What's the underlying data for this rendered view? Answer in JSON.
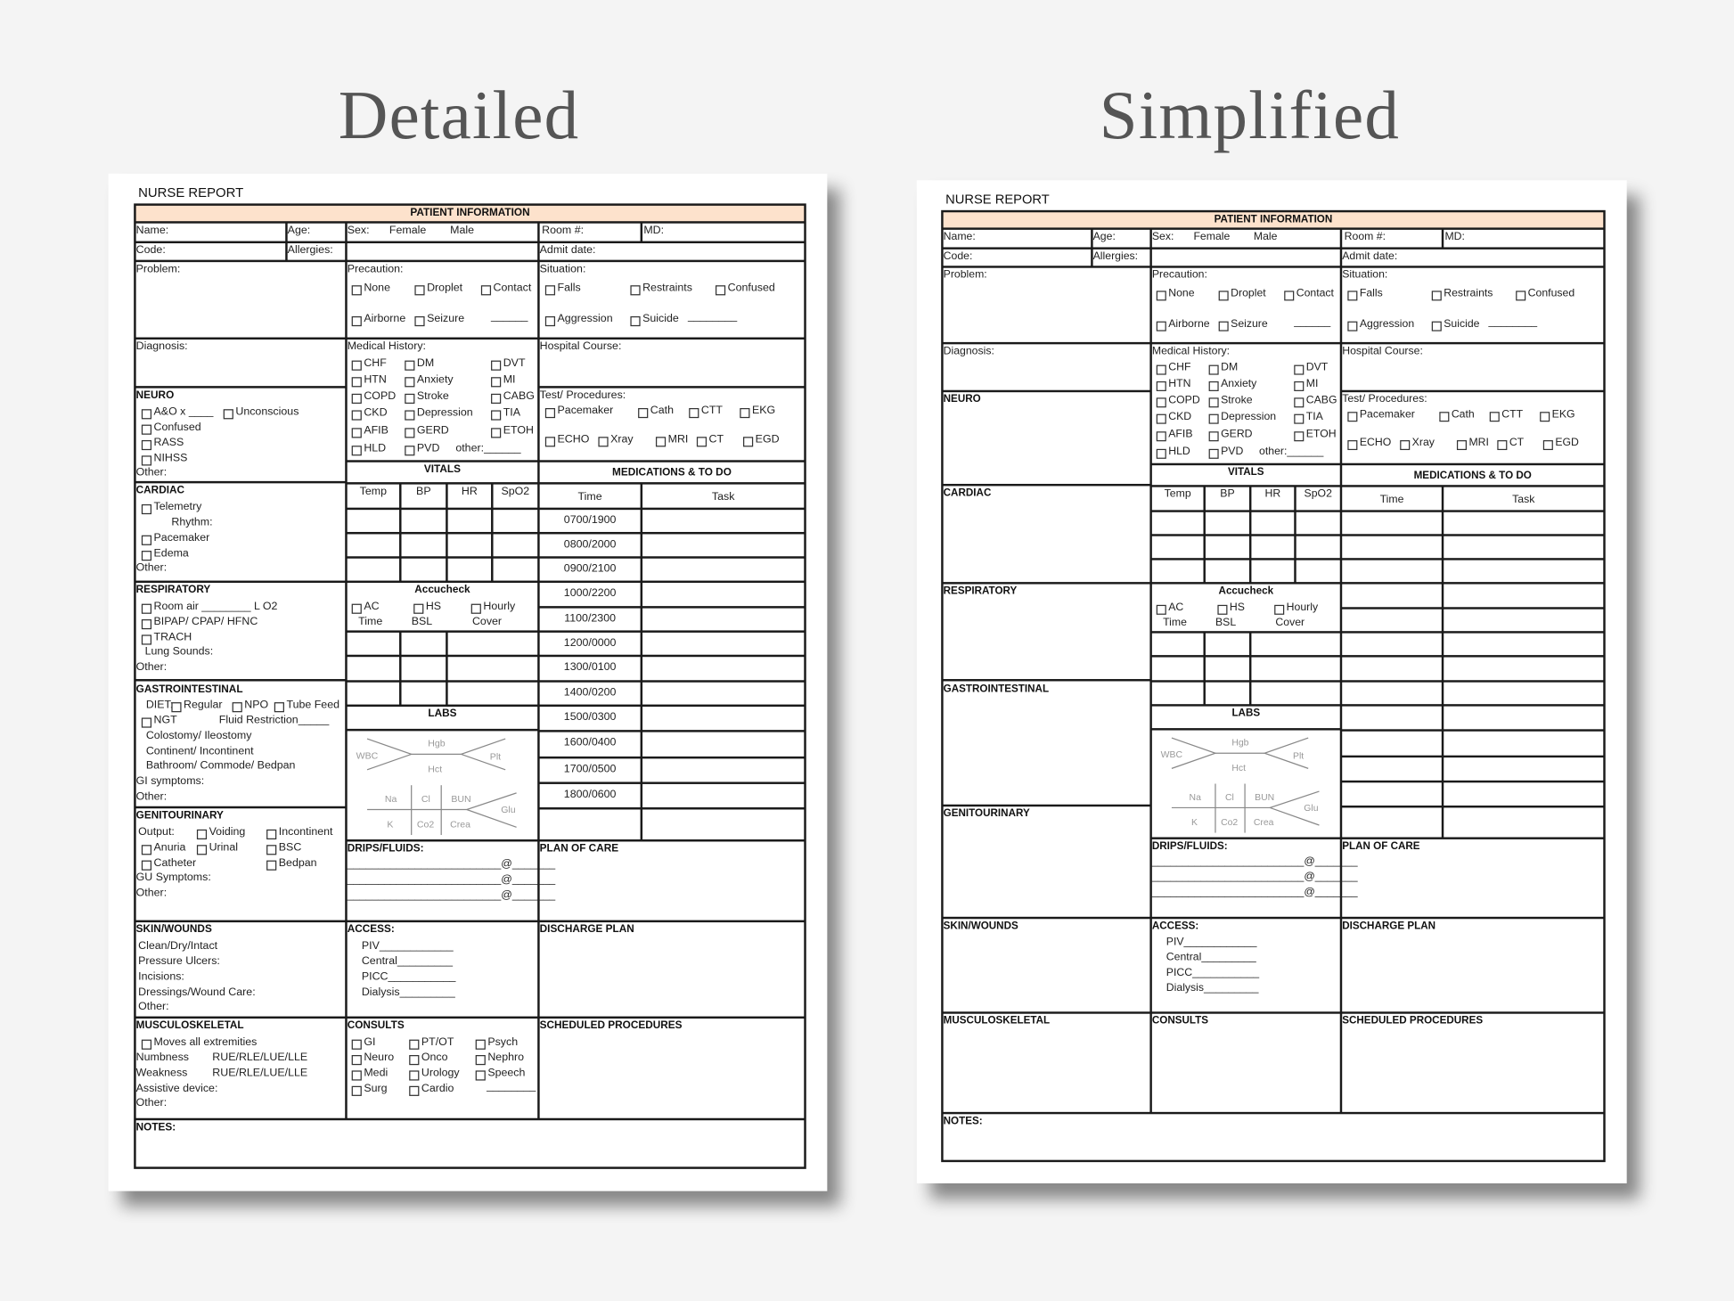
{
  "headings": {
    "detailed": "Detailed",
    "simplified": "Simplified"
  },
  "forms": {
    "detailed": {
      "report_title": "NURSE REPORT",
      "patient_information": "PATIENT INFORMATION",
      "name": "Name:",
      "age": "Age:",
      "sex": "Sex:",
      "female": "Female",
      "male": "Male",
      "room": "Room #:",
      "md": "MD:",
      "code": "Code:",
      "allergies": "Allergies:",
      "admit_date": "Admit date:",
      "problem": "Problem:",
      "diagnosis": "Diagnosis:",
      "hospital_course": "Hospital Course:",
      "precaution": {
        "label": "Precaution:",
        "options": [
          "None",
          "Droplet",
          "Contact",
          "Airborne",
          "Seizure"
        ],
        "blank": "______"
      },
      "situation": {
        "label": "Situation:",
        "options": [
          "Falls",
          "Restraints",
          "Confused",
          "Aggression",
          "Suicide"
        ],
        "blank": "________"
      },
      "medical_history": {
        "label": "Medical History:",
        "options": [
          "CHF",
          "DM",
          "DVT",
          "HTN",
          "Anxiety",
          "MI",
          "COPD",
          "Stroke",
          "CABG",
          "CKD",
          "Depression",
          "TIA",
          "AFIB",
          "GERD",
          "ETOH",
          "HLD",
          "PVD"
        ],
        "other": "other:______"
      },
      "tests": {
        "label": "Test/ Procedures:",
        "options": [
          "Pacemaker",
          "Cath",
          "CTT",
          "EKG",
          "ECHO",
          "Xray",
          "MRI",
          "CT",
          "EGD"
        ]
      },
      "neuro": {
        "title": "NEURO",
        "items": [
          "A&O x ____",
          "Unconscious",
          "Confused",
          "RASS",
          "NIHSS"
        ],
        "other": "Other:"
      },
      "cardiac": {
        "title": "CARDIAC",
        "items": [
          "Telemetry",
          "Pacemaker",
          "Edema"
        ],
        "rhythm": "Rhythm:",
        "other": "Other:"
      },
      "respiratory": {
        "title": "RESPIRATORY",
        "items": [
          "Room air ________ L O2",
          "BIPAP/ CPAP/ HFNC",
          "TRACH"
        ],
        "lung_sounds": "Lung Sounds:",
        "other": "Other:"
      },
      "gi": {
        "title": "GASTROINTESTINAL",
        "diet_label": "DIET:",
        "diet_options": [
          "Regular",
          "NPO",
          "Tube Feed"
        ],
        "ngt": "NGT",
        "fluid": "Fluid Restriction_____",
        "lines": [
          "Colostomy/ Ileostomy",
          "Continent/ Incontinent",
          "Bathroom/ Commode/ Bedpan"
        ],
        "symptoms": "GI symptoms:",
        "other": "Other:"
      },
      "gu": {
        "title": "GENITOURINARY",
        "output": "Output:",
        "options": [
          "Voiding",
          "Incontinent",
          "Anuria",
          "Urinal",
          "BSC",
          "Catheter",
          "Bedpan"
        ],
        "symptoms": "GU Symptoms:",
        "other": "Other:"
      },
      "skin": {
        "title": "SKIN/WOUNDS",
        "lines": [
          "Clean/Dry/Intact",
          "Pressure Ulcers:",
          "Incisions:",
          "Dressings/Wound Care:",
          "Other:"
        ]
      },
      "msk": {
        "title": "MUSCULOSKELETAL",
        "moves": "Moves all extremities",
        "lines": [
          "Numbness",
          "Weakness"
        ],
        "sides": [
          "RUE/RLE/LUE/LLE",
          "RUE/RLE/LUE/LLE"
        ],
        "assistive": "Assistive device:",
        "other": "Other:"
      },
      "vitals": {
        "title": "VITALS",
        "columns": [
          "Temp",
          "BP",
          "HR",
          "SpO2"
        ]
      },
      "accucheck": {
        "title": "Accucheck",
        "options": [
          "AC",
          "HS",
          "Hourly"
        ],
        "sublabels": [
          "Time",
          "BSL",
          "Cover"
        ]
      },
      "labs": {
        "title": "LABS",
        "cbc": [
          "WBC",
          "Hgb",
          "Hct",
          "Plt"
        ],
        "bmp": [
          "Na",
          "Cl",
          "BUN",
          "K",
          "Co2",
          "Crea",
          "Glu"
        ]
      },
      "drips": {
        "title": "DRIPS/FLUIDS:",
        "lines": [
          "_________________________@_______",
          "_________________________@_______",
          "_________________________@_______"
        ]
      },
      "access": {
        "title": "ACCESS:",
        "items": [
          "PIV____________",
          "Central_________",
          "PICC___________",
          "Dialysis_________"
        ]
      },
      "consults": {
        "title": "CONSULTS",
        "options": [
          "GI",
          "Neuro",
          "Medi",
          "Surg",
          "PT/OT",
          "Onco",
          "Urology",
          "Cardio",
          "Psych",
          "Nephro",
          "Speech"
        ],
        "blank": "________"
      },
      "meds": {
        "title": "MEDICATIONS & TO DO",
        "time": "Time",
        "task": "Task",
        "times": [
          "0700/1900",
          "0800/2000",
          "0900/2100",
          "1000/2200",
          "1100/2300",
          "1200/0000",
          "1300/0100",
          "1400/0200",
          "1500/0300",
          "1600/0400",
          "1700/0500",
          "1800/0600"
        ]
      },
      "plan": "PLAN OF CARE",
      "discharge": "DISCHARGE PLAN",
      "scheduled": "SCHEDULED PROCEDURES",
      "notes": "NOTES:"
    },
    "simplified": {
      "report_title": "NURSE REPORT",
      "patient_information": "PATIENT INFORMATION",
      "name": "Name:",
      "age": "Age:",
      "sex": "Sex:",
      "female": "Female",
      "male": "Male",
      "room": "Room #:",
      "md": "MD:",
      "code": "Code:",
      "allergies": "Allergies:",
      "admit_date": "Admit date:",
      "problem": "Problem:",
      "diagnosis": "Diagnosis:",
      "hospital_course": "Hospital Course:",
      "precaution": {
        "label": "Precaution:",
        "options": [
          "None",
          "Droplet",
          "Contact",
          "Airborne",
          "Seizure"
        ],
        "blank": "______"
      },
      "situation": {
        "label": "Situation:",
        "options": [
          "Falls",
          "Restraints",
          "Confused",
          "Aggression",
          "Suicide"
        ],
        "blank": "________"
      },
      "medical_history": {
        "label": "Medical History:",
        "options": [
          "CHF",
          "DM",
          "DVT",
          "HTN",
          "Anxiety",
          "MI",
          "COPD",
          "Stroke",
          "CABG",
          "CKD",
          "Depression",
          "TIA",
          "AFIB",
          "GERD",
          "ETOH",
          "HLD",
          "PVD"
        ],
        "other": "other:______"
      },
      "tests": {
        "label": "Test/ Procedures:",
        "options": [
          "Pacemaker",
          "Cath",
          "CTT",
          "EKG",
          "ECHO",
          "Xray",
          "MRI",
          "CT",
          "EGD"
        ]
      },
      "neuro": {
        "title": "NEURO"
      },
      "cardiac": {
        "title": "CARDIAC"
      },
      "respiratory": {
        "title": "RESPIRATORY"
      },
      "gi": {
        "title": "GASTROINTESTINAL"
      },
      "gu": {
        "title": "GENITOURINARY"
      },
      "skin": {
        "title": "SKIN/WOUNDS"
      },
      "msk": {
        "title": "MUSCULOSKELETAL"
      },
      "vitals": {
        "title": "VITALS",
        "columns": [
          "Temp",
          "BP",
          "HR",
          "SpO2"
        ]
      },
      "accucheck": {
        "title": "Accucheck",
        "options": [
          "AC",
          "HS",
          "Hourly"
        ],
        "sublabels": [
          "Time",
          "BSL",
          "Cover"
        ]
      },
      "labs": {
        "title": "LABS",
        "cbc": [
          "WBC",
          "Hgb",
          "Hct",
          "Plt"
        ],
        "bmp": [
          "Na",
          "Cl",
          "BUN",
          "K",
          "Co2",
          "Crea",
          "Glu"
        ]
      },
      "drips": {
        "title": "DRIPS/FLUIDS:",
        "lines": [
          "_________________________@_______",
          "_________________________@_______",
          "_________________________@_______"
        ]
      },
      "access": {
        "title": "ACCESS:",
        "items": [
          "PIV____________",
          "Central_________",
          "PICC___________",
          "Dialysis_________"
        ]
      },
      "consults": {
        "title": "CONSULTS"
      },
      "meds": {
        "title": "MEDICATIONS & TO DO",
        "time": "Time",
        "task": "Task"
      },
      "plan": "PLAN OF CARE",
      "discharge": "DISCHARGE PLAN",
      "scheduled": "SCHEDULED PROCEDURES",
      "notes": "NOTES:"
    }
  }
}
